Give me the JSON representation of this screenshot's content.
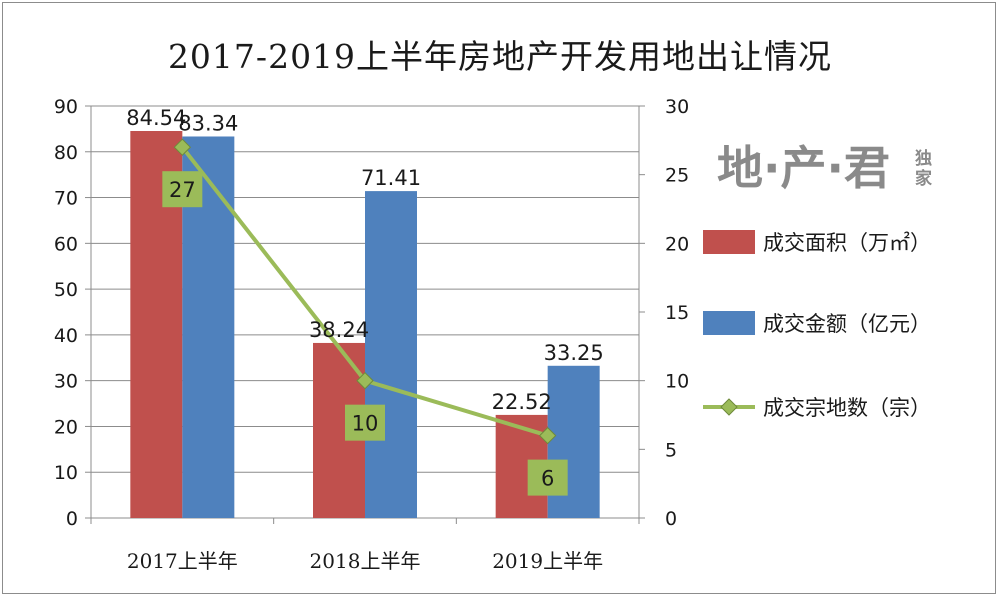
{
  "chart_data": {
    "type": "bar",
    "title": "2017-2019上半年房地产开发用地出让情况",
    "categories": [
      "2017上半年",
      "2018上半年",
      "2019上半年"
    ],
    "ylim_left": [
      0,
      90
    ],
    "ylim_right": [
      0,
      30
    ],
    "yticks_left": [
      "0",
      "10",
      "20",
      "30",
      "40",
      "50",
      "60",
      "70",
      "80",
      "90"
    ],
    "yticks_right": [
      "0",
      "5",
      "10",
      "15",
      "20",
      "25",
      "30"
    ],
    "series": [
      {
        "name": "成交面积（万㎡）",
        "kind": "bar",
        "axis": "left",
        "color": "#c0504d",
        "values": [
          84.54,
          38.24,
          22.52
        ],
        "labels": [
          "84.54",
          "38.24",
          "22.52"
        ]
      },
      {
        "name": "成交金额（亿元）",
        "kind": "bar",
        "axis": "left",
        "color": "#4f81bd",
        "values": [
          83.34,
          71.41,
          33.25
        ],
        "labels": [
          "83.34",
          "71.41",
          "33.25"
        ]
      },
      {
        "name": "成交宗地数（宗）",
        "kind": "line",
        "axis": "right",
        "color": "#9bbb59",
        "values": [
          27,
          10,
          6
        ],
        "labels": [
          "27",
          "10",
          "6"
        ]
      }
    ],
    "grid": true,
    "legend_position": "right"
  },
  "watermark": {
    "main": "地·产·君",
    "sub_top": "独",
    "sub_bottom": "家"
  }
}
